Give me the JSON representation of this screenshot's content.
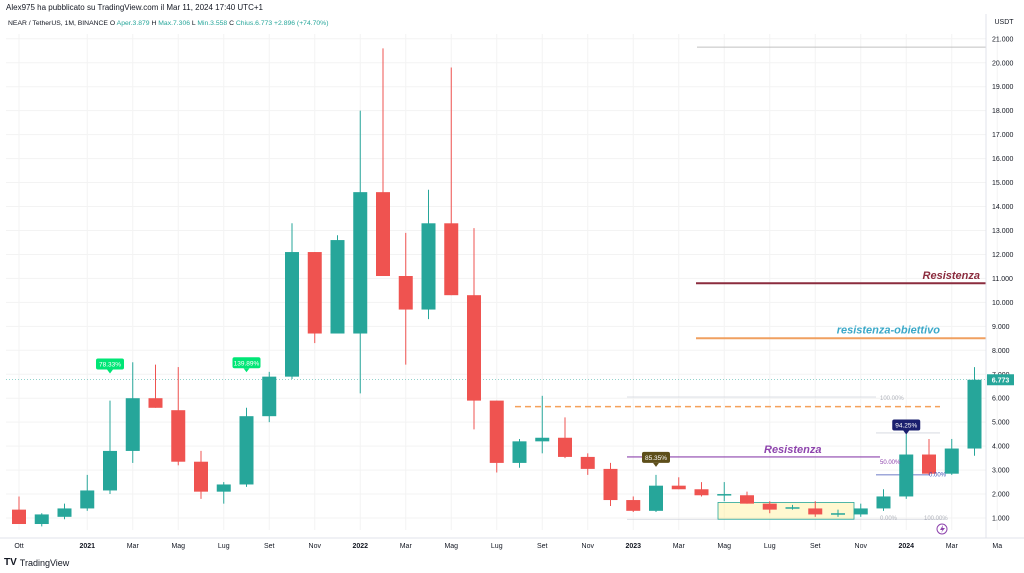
{
  "header": {
    "published": "Alex975 ha pubblicato su TradingView.com il Mar 11, 2024 17:40 UTC+1",
    "symbol": "NEAR / TetherUS, 1M, BINANCE",
    "open_label": "O",
    "open": "Aper.3.879",
    "high_label": "H",
    "high": "Max.7.306",
    "low_label": "L",
    "low": "Min.3.558",
    "close_label": "C",
    "close": "Chius.6.773",
    "change": "+2.896 (+74.70%)",
    "currency": "USDT"
  },
  "footer": {
    "logo": "TV",
    "brand": "TradingView"
  },
  "colors": {
    "up": "#26a69a",
    "down": "#ef5350",
    "resistance": "#8b2c3e",
    "target": "#f0a060",
    "target_text": "#3aa8c8",
    "purple": "#8e44ad",
    "dashed": "#f5a05a",
    "last_price": "#26a69a"
  },
  "chart_data": {
    "type": "candlestick",
    "title": "NEAR / TetherUS, 1M, BINANCE",
    "ylim": [
      0.5,
      21.2
    ],
    "y_ticks": [
      "1.000",
      "2.000",
      "3.000",
      "4.000",
      "5.000",
      "6.000",
      "7.000",
      "8.000",
      "9.000",
      "10.000",
      "11.000",
      "12.000",
      "13.000",
      "14.000",
      "15.000",
      "16.000",
      "17.000",
      "18.000",
      "19.000",
      "20.000",
      "21.000"
    ],
    "x_labels": [
      "Ott",
      "2021",
      "Mar",
      "Mag",
      "Lug",
      "Set",
      "Nov",
      "2022",
      "Mar",
      "Mag",
      "Lug",
      "Set",
      "Nov",
      "2023",
      "Mar",
      "Mag",
      "Lug",
      "Set",
      "Nov",
      "2024",
      "Mar",
      "Ma"
    ],
    "candles": [
      {
        "o": 1.35,
        "h": 1.9,
        "l": 0.85,
        "c": 0.75
      },
      {
        "o": 0.75,
        "h": 1.2,
        "l": 0.65,
        "c": 1.15
      },
      {
        "o": 1.05,
        "h": 1.6,
        "l": 0.95,
        "c": 1.4
      },
      {
        "o": 1.4,
        "h": 2.8,
        "l": 1.3,
        "c": 2.15
      },
      {
        "o": 2.15,
        "h": 5.9,
        "l": 2.0,
        "c": 3.8
      },
      {
        "o": 3.8,
        "h": 7.5,
        "l": 3.3,
        "c": 6.0
      },
      {
        "o": 6.0,
        "h": 7.4,
        "l": 5.6,
        "c": 5.6
      },
      {
        "o": 5.5,
        "h": 7.3,
        "l": 3.2,
        "c": 3.35
      },
      {
        "o": 3.35,
        "h": 3.8,
        "l": 1.8,
        "c": 2.1
      },
      {
        "o": 2.1,
        "h": 2.5,
        "l": 1.6,
        "c": 2.4
      },
      {
        "o": 2.4,
        "h": 5.6,
        "l": 2.3,
        "c": 5.25
      },
      {
        "o": 5.25,
        "h": 7.1,
        "l": 5.0,
        "c": 6.9
      },
      {
        "o": 6.9,
        "h": 13.3,
        "l": 6.8,
        "c": 12.1
      },
      {
        "o": 12.1,
        "h": 12.1,
        "l": 8.3,
        "c": 8.7
      },
      {
        "o": 8.7,
        "h": 12.8,
        "l": 8.7,
        "c": 12.6
      },
      {
        "o": 8.7,
        "h": 18.0,
        "l": 6.2,
        "c": 14.6
      },
      {
        "o": 14.6,
        "h": 20.6,
        "l": 11.1,
        "c": 11.1
      },
      {
        "o": 11.1,
        "h": 12.9,
        "l": 7.4,
        "c": 9.7
      },
      {
        "o": 9.7,
        "h": 14.7,
        "l": 9.3,
        "c": 13.3
      },
      {
        "o": 13.3,
        "h": 19.8,
        "l": 10.3,
        "c": 10.3
      },
      {
        "o": 10.3,
        "h": 13.1,
        "l": 4.7,
        "c": 5.9
      },
      {
        "o": 5.9,
        "h": 5.9,
        "l": 2.9,
        "c": 3.3
      },
      {
        "o": 3.3,
        "h": 4.3,
        "l": 3.1,
        "c": 4.2
      },
      {
        "o": 4.2,
        "h": 6.1,
        "l": 3.7,
        "c": 4.35
      },
      {
        "o": 4.35,
        "h": 5.2,
        "l": 3.5,
        "c": 3.55
      },
      {
        "o": 3.55,
        "h": 3.7,
        "l": 2.8,
        "c": 3.05
      },
      {
        "o": 3.05,
        "h": 3.3,
        "l": 1.5,
        "c": 1.75
      },
      {
        "o": 1.75,
        "h": 1.9,
        "l": 1.25,
        "c": 1.3
      },
      {
        "o": 1.3,
        "h": 2.8,
        "l": 1.25,
        "c": 2.35
      },
      {
        "o": 2.35,
        "h": 2.7,
        "l": 2.2,
        "c": 2.2
      },
      {
        "o": 2.2,
        "h": 2.5,
        "l": 1.9,
        "c": 1.95
      },
      {
        "o": 1.95,
        "h": 2.5,
        "l": 1.7,
        "c": 2.0
      },
      {
        "o": 1.95,
        "h": 2.1,
        "l": 1.6,
        "c": 1.6
      },
      {
        "o": 1.6,
        "h": 1.7,
        "l": 1.2,
        "c": 1.35
      },
      {
        "o": 1.4,
        "h": 1.55,
        "l": 1.35,
        "c": 1.45
      },
      {
        "o": 1.4,
        "h": 1.7,
        "l": 1.05,
        "c": 1.15
      },
      {
        "o": 1.15,
        "h": 1.35,
        "l": 1.05,
        "c": 1.2
      },
      {
        "o": 1.15,
        "h": 1.6,
        "l": 1.05,
        "c": 1.4
      },
      {
        "o": 1.4,
        "h": 2.2,
        "l": 1.3,
        "c": 1.9
      },
      {
        "o": 1.9,
        "h": 4.5,
        "l": 1.8,
        "c": 3.65
      },
      {
        "o": 3.65,
        "h": 4.3,
        "l": 2.8,
        "c": 2.85
      },
      {
        "o": 2.85,
        "h": 4.3,
        "l": 2.8,
        "c": 3.9
      },
      {
        "o": 3.9,
        "h": 7.3,
        "l": 3.6,
        "c": 6.77
      }
    ],
    "lines": [
      {
        "label": "Resistenza",
        "y": 10.8,
        "style": "solid",
        "color": "#8b2c3e"
      },
      {
        "label": "resistenza-obiettivo",
        "y": 8.5,
        "style": "solid",
        "color": "#f0a060"
      },
      {
        "label": "Resistenza",
        "y": 3.55,
        "style": "solid",
        "color": "#8e44ad"
      },
      {
        "label": "",
        "y": 5.65,
        "style": "dashed",
        "color": "#f5a05a"
      },
      {
        "label": "",
        "y": 20.65,
        "style": "solid",
        "color": "#c0c0c0"
      }
    ],
    "fib_levels": [
      "100.00%",
      "50.00%",
      "0.00%",
      "0.00%",
      "100.00%"
    ],
    "annotations": [
      "78.33%",
      "139.89%",
      "85.35%",
      "94.25%"
    ],
    "last_price": "6.773"
  }
}
